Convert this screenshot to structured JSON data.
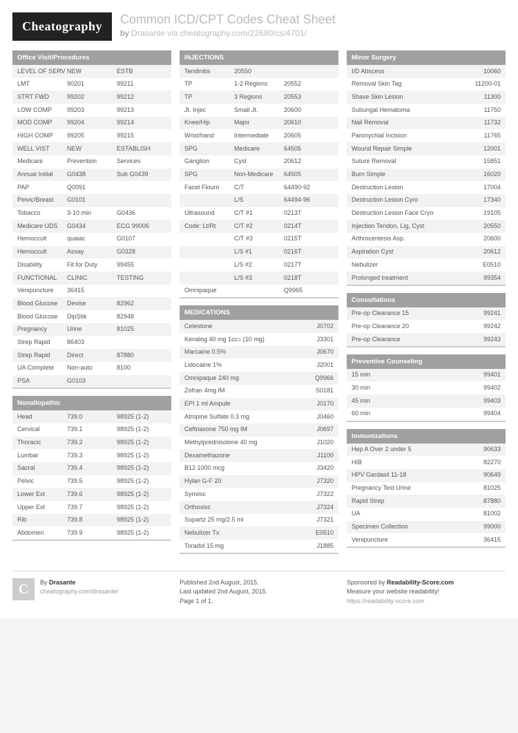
{
  "logo": "Cheatography",
  "title": "Common ICD/CPT Codes Cheat Sheet",
  "byline_by": "by ",
  "byline_author": "Drasante",
  "byline_via": " via ",
  "byline_url": "cheatography.com/22680/cs/4701/",
  "col1": [
    {
      "title": "Office Visit/Procedures",
      "cols": 3,
      "rows": [
        [
          "LEVEL OF SERV",
          "NEW",
          "ESTB"
        ],
        [
          "LMT",
          "90201",
          "99211"
        ],
        [
          "STRT FWD",
          "99202",
          "99212"
        ],
        [
          "LOW COMP",
          "99203",
          "99213"
        ],
        [
          "MOD COMP",
          "99204",
          "99214"
        ],
        [
          "HIGH COMP",
          "99205",
          "99215"
        ],
        [
          "WELL VIST",
          "NEW",
          "ESTABLISH"
        ],
        [
          "Medicare",
          "Prevention",
          "Services"
        ],
        [
          "Annual Initial",
          "G0438",
          "Sub G0439"
        ],
        [
          "PAP",
          "Q0091",
          ""
        ],
        [
          "Pelvic/Breast",
          "G0101",
          ""
        ],
        [
          "Tobacco",
          "3-10 min",
          "G0436"
        ],
        [
          "Medicare UDS",
          "G0434",
          "ECG 99006"
        ],
        [
          "Hemoccult",
          "quaiac",
          "G0107"
        ],
        [
          "Hemoccult",
          "Assay",
          "G0328"
        ],
        [
          "Disability",
          "Fit for Duty",
          "99455"
        ],
        [
          "FUNCTIONAL",
          "CLINIC",
          "TESTING"
        ],
        [
          "Venipuncture",
          "36415",
          ""
        ],
        [
          "Blood Glucose",
          "Devise",
          "82962"
        ],
        [
          "Blood Glucose",
          "DipStik",
          "82948"
        ],
        [
          "Pregnancy",
          "Urine",
          "81025"
        ],
        [
          "Strep Rapid",
          "86403",
          ""
        ],
        [
          "Strep Rapid",
          "Direct",
          "87880"
        ],
        [
          "UA Complete",
          "Non-auto",
          "8100"
        ],
        [
          "PSA",
          "G0103",
          ""
        ]
      ]
    },
    {
      "title": "Nonallopathic",
      "cols": 3,
      "rows": [
        [
          "Head",
          "739.0",
          "98925 (1-2)"
        ],
        [
          "Cervical",
          "739.1",
          "98925 (1-2)"
        ],
        [
          "Thoracic",
          "739.2",
          "98925 (1-2)"
        ],
        [
          "Lumbar",
          "739.3",
          "98925 (1-2)"
        ],
        [
          "Sacral",
          "739.4",
          "98925 (1-2)"
        ],
        [
          "Pelvic",
          "739.5",
          "98925 (1-2)"
        ],
        [
          "Lower Ext",
          "739.6",
          "98925 (1-2)"
        ],
        [
          "Upper Ext",
          "739.7",
          "98925 (1-2)"
        ],
        [
          "Rib",
          "739.8",
          "98925 (1-2)"
        ],
        [
          "Abdomen",
          "739.9",
          "98925 (1-2)"
        ]
      ]
    }
  ],
  "col2": [
    {
      "title": "INJECTIONS",
      "cols": 3,
      "rows": [
        [
          "Tendinitis",
          "20550",
          ""
        ],
        [
          "TP",
          "1-2 Regions",
          "20552"
        ],
        [
          "TP",
          "3 Regions",
          "20553"
        ],
        [
          "Jt. Injec",
          "Small Jt.",
          "20600"
        ],
        [
          "Knee/Hip",
          "Major",
          "20610"
        ],
        [
          "Wrist/hand",
          "Intermediate",
          "20605"
        ],
        [
          "SPG",
          "Medicare",
          "64505"
        ],
        [
          "Ganglion",
          "Cyst",
          "20612"
        ],
        [
          "SPG",
          "Non-Medicare",
          "64505"
        ],
        [
          "Facet Flouro",
          "C/T",
          "64490-92"
        ],
        [
          "",
          "L/S",
          "64494-96"
        ],
        [
          "Ultrasound",
          "C/T #1",
          "0213T"
        ],
        [
          "Code: Lt/Rt",
          "C/T #2",
          "0214T"
        ],
        [
          "",
          "C/T #3",
          "0215T"
        ],
        [
          "",
          "L/S #1",
          "0216T"
        ],
        [
          "",
          "L/S #2",
          "0217T"
        ],
        [
          "",
          "L/S #3",
          "0218T"
        ],
        [
          "Omnipaque",
          "",
          "Q9965"
        ]
      ]
    },
    {
      "title": "MEDICATIONS",
      "cols": 2,
      "rows": [
        [
          "Celestone",
          "J0702"
        ],
        [
          "Kenalog 40 mg 1cc= (10 mg)",
          "J3301"
        ],
        [
          "Marcaine 0.5%",
          "J0670"
        ],
        [
          "Lidocaine 1%",
          "J2001"
        ],
        [
          "Omnipaque 240 mg",
          "Q9966"
        ],
        [
          "Zofran 4mg IM",
          "S0181"
        ],
        [
          "EPI 1 ml Ampule",
          "J0170"
        ],
        [
          "Atropine Sulfate 0.3 mg",
          "J0460"
        ],
        [
          "Ceftriaxone 750 mg IM",
          "J0697"
        ],
        [
          "Methylprednisolone 40 mg",
          "J1020"
        ],
        [
          "Dexamethazone",
          "J1100"
        ],
        [
          "B12 1000 mcg",
          "J3420"
        ],
        [
          "Hylan G-F 20",
          "J7320"
        ],
        [
          "Synvisc",
          "J7322"
        ],
        [
          "Orthovisc",
          "J7324"
        ],
        [
          "Supartz 25 mg/2.5 ml",
          "J7321"
        ],
        [
          "Nebulizer Tx",
          "E0510"
        ],
        [
          "Toradol 15 mg",
          "J1885"
        ]
      ]
    }
  ],
  "col3": [
    {
      "title": "Minor Surgery",
      "cols": 2,
      "rows": [
        [
          "I/D Abscess",
          "10060"
        ],
        [
          "Removal Skin Tag",
          "11200-01"
        ],
        [
          "Shave Skin Lesion",
          "11300"
        ],
        [
          "Subungal Hematoma",
          "11750"
        ],
        [
          "Nail Removal",
          "11732"
        ],
        [
          "Paronychial Incision",
          "11765"
        ],
        [
          "Wound Repair Simple",
          "12001"
        ],
        [
          "Suture Removal",
          "15851"
        ],
        [
          "Burn Simple",
          "16020"
        ],
        [
          "Destruction Lesion",
          "17004"
        ],
        [
          "Destruction Lesion Cyro",
          "17340"
        ],
        [
          "Destruction Lesion Face Cryo",
          "19105"
        ],
        [
          "Injection Tendon, Lig, Cyst",
          "20550"
        ],
        [
          "Arthrocentesis Asp.",
          "20600"
        ],
        [
          "Aspiration Cyst",
          "20612"
        ],
        [
          "Nebulizer",
          "E0510"
        ],
        [
          "Prolonged treatment",
          "99354"
        ]
      ]
    },
    {
      "title": "Consultations",
      "cols": 2,
      "rows": [
        [
          "Pre-op Clearance 15",
          "99241"
        ],
        [
          "Pre-op Clearance 20",
          "99242"
        ],
        [
          "Pre-op Clearance",
          "99243"
        ]
      ]
    },
    {
      "title": "Preventive Counseling",
      "cols": 2,
      "rows": [
        [
          "15 min",
          "99401"
        ],
        [
          "30 min",
          "99402"
        ],
        [
          "45 min",
          "99403"
        ],
        [
          "60 min",
          "99404"
        ]
      ]
    },
    {
      "title": "Immunizations",
      "cols": 2,
      "rows": [
        [
          "Hep A Over 2 under 5",
          "90633"
        ],
        [
          "HIB",
          "82270"
        ],
        [
          "HPV Gardasil 11-18",
          "90649"
        ],
        [
          "Pregnancy Test Urine",
          "81025"
        ],
        [
          "Rapid Strep",
          "87880"
        ],
        [
          "UA",
          "81002"
        ],
        [
          "Specimen Collection",
          "99000"
        ],
        [
          "Venipuncture",
          "36415"
        ]
      ]
    }
  ],
  "footer": {
    "avatar": "C",
    "by": "By ",
    "author": "Drasante",
    "authorurl": "cheatography.com/drasante/",
    "pub": "Published 2nd August, 2015.",
    "upd": "Last updated 2nd August, 2015.",
    "page": "Page 1 of 1.",
    "spons": "Sponsored by ",
    "sponsname": "Readability-Score.com",
    "sponstag": "Measure your website readability!",
    "sponsurl": "https://readability-score.com"
  }
}
